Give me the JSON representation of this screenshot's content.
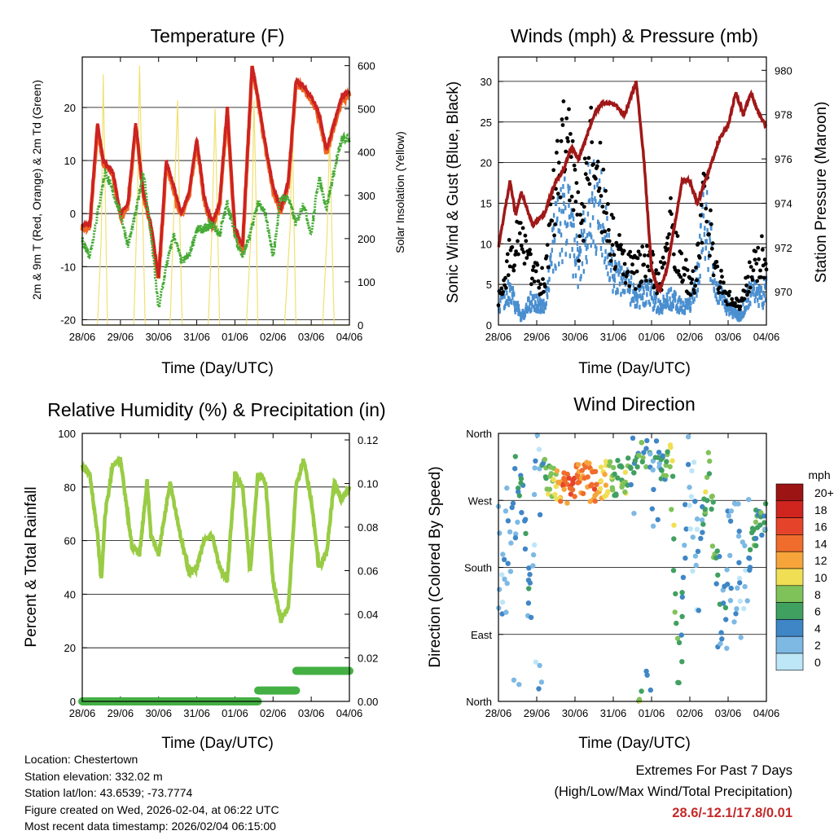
{
  "colors": {
    "temp2m": "#cc2222",
    "temp9m": "#ee6622",
    "dewpoint": "#44aa33",
    "solar": "#f0e070",
    "wind": "#4a8fd0",
    "gust": "#000000",
    "pressure": "#a01818",
    "rh": "#99cc44",
    "precip": "#44b044",
    "extremes": "#c42a2a"
  },
  "speed_scale": {
    "unit": "mph",
    "labels": [
      "20+",
      "18",
      "16",
      "14",
      "12",
      "10",
      "8",
      "6",
      "4",
      "2",
      "0"
    ],
    "colors": [
      "#9c1414",
      "#d0251f",
      "#e6442a",
      "#f06c2c",
      "#f7a53b",
      "#f0df55",
      "#80c25a",
      "#40a060",
      "#3f86c6",
      "#7eb9e4",
      "#bde6f7"
    ]
  },
  "chart_data": [
    {
      "id": "temperature",
      "type": "line",
      "title": "Temperature (F)",
      "xlabel": "Time (Day/UTC)",
      "ylabel": "2m & 9m T (Red, Orange) & 2m Td (Green)",
      "ylabel_right": "Solar Insolation (Yellow)",
      "x_ticks": [
        "28/06",
        "29/06",
        "30/06",
        "31/06",
        "01/06",
        "02/06",
        "03/06",
        "04/06"
      ],
      "ylim": [
        -21,
        29.5
      ],
      "y_ticks": [
        -20,
        -10,
        0,
        10,
        20
      ],
      "y2lim": [
        0,
        620
      ],
      "y2_ticks": [
        0,
        100,
        200,
        300,
        400,
        500,
        600
      ],
      "series": [
        {
          "name": "2m T",
          "x": [
            0,
            0.2,
            0.4,
            0.55,
            0.8,
            1.0,
            1.2,
            1.4,
            1.6,
            1.8,
            2.0,
            2.2,
            2.4,
            2.6,
            2.8,
            3.0,
            3.2,
            3.4,
            3.6,
            3.8,
            4.0,
            4.2,
            4.45,
            4.6,
            4.8,
            5.0,
            5.2,
            5.4,
            5.6,
            5.8,
            6.0,
            6.2,
            6.4,
            6.6,
            6.8,
            7.0
          ],
          "values": [
            -2,
            -2,
            17,
            10,
            8,
            0,
            2,
            17,
            4,
            -2,
            -12,
            10,
            5,
            0,
            4,
            14,
            3,
            -2,
            2,
            20,
            -3,
            -6,
            28,
            22,
            13,
            5,
            1,
            6,
            25,
            24,
            22,
            19,
            12,
            17,
            22,
            23
          ]
        },
        {
          "name": "Dewpoint",
          "x": [
            0,
            0.2,
            0.4,
            0.6,
            0.8,
            1.0,
            1.2,
            1.4,
            1.6,
            1.8,
            2.0,
            2.2,
            2.4,
            2.6,
            2.8,
            3.0,
            3.2,
            3.4,
            3.6,
            3.8,
            4.0,
            4.2,
            4.4,
            4.6,
            4.8,
            5.0,
            5.2,
            5.4,
            5.6,
            5.8,
            6.0,
            6.2,
            6.4,
            6.6,
            6.8,
            7.0
          ],
          "values": [
            -5,
            -8,
            0,
            8,
            4,
            0,
            -6,
            0,
            8,
            -4,
            -18,
            -10,
            -4,
            -9,
            -8,
            -3,
            -3,
            -2,
            -4,
            2,
            -4,
            -8,
            -4,
            2,
            0,
            -8,
            3,
            3,
            -2,
            2,
            -4,
            7,
            1,
            8,
            14,
            14
          ]
        },
        {
          "name": "Solar Insolation",
          "x": [
            0,
            0.4,
            0.5,
            0.55,
            0.62,
            0.66,
            1.0,
            1.35,
            1.45,
            1.5,
            1.57,
            1.65,
            2.0,
            2.3,
            2.4,
            2.5,
            2.55,
            2.62,
            3.0,
            3.3,
            3.4,
            3.48,
            3.55,
            3.6,
            4.0,
            4.3,
            4.45,
            4.5,
            4.56,
            4.6,
            5.0,
            5.3,
            5.45,
            5.5,
            5.55,
            5.6,
            6.0,
            6.3,
            6.42,
            6.48,
            6.54,
            6.6,
            7.0
          ],
          "values": [
            0,
            0,
            210,
            580,
            210,
            0,
            0,
            0,
            310,
            600,
            310,
            0,
            0,
            0,
            260,
            520,
            260,
            0,
            0,
            0,
            220,
            500,
            220,
            0,
            0,
            0,
            260,
            520,
            260,
            0,
            0,
            0,
            230,
            470,
            230,
            0,
            0,
            0,
            220,
            450,
            220,
            0,
            0
          ]
        }
      ]
    },
    {
      "id": "winds",
      "type": "scatter",
      "title": "Winds (mph) & Pressure (mb)",
      "xlabel": "Time (Day/UTC)",
      "ylabel": "Sonic Wind & Gust (Blue, Black)",
      "ylabel_right": "Station Pressure (Maroon)",
      "x_ticks": [
        "28/06",
        "29/06",
        "30/06",
        "31/06",
        "01/06",
        "02/06",
        "03/06",
        "04/06"
      ],
      "ylim": [
        0,
        33
      ],
      "y_ticks": [
        0,
        5,
        10,
        15,
        20,
        25,
        30
      ],
      "y2lim": [
        968.5,
        980.6
      ],
      "y2_ticks": [
        970,
        972,
        974,
        976,
        978,
        980
      ],
      "series": [
        {
          "name": "Sonic Wind",
          "x": [
            0,
            0.3,
            0.6,
            0.9,
            1.2,
            1.5,
            1.8,
            2.1,
            2.4,
            2.7,
            3.0,
            3.3,
            3.6,
            3.9,
            4.2,
            4.5,
            4.8,
            5.1,
            5.4,
            5.7,
            6.0,
            6.3,
            6.6,
            6.9,
            7.0
          ],
          "values": [
            2,
            4,
            1,
            3,
            2,
            10,
            12,
            6,
            14,
            12,
            6,
            5,
            3,
            4,
            2,
            3,
            2,
            3,
            12,
            4,
            2,
            1,
            4,
            3,
            5
          ]
        },
        {
          "name": "Gust",
          "x": [
            0,
            0.3,
            0.6,
            0.9,
            1.2,
            1.5,
            1.8,
            2.1,
            2.4,
            2.7,
            3.0,
            3.3,
            3.6,
            3.9,
            4.2,
            4.5,
            4.8,
            5.1,
            5.4,
            5.7,
            6.0,
            6.3,
            6.6,
            6.9,
            7.0
          ],
          "values": [
            4,
            10,
            15,
            8,
            6,
            21,
            28,
            14,
            26,
            20,
            12,
            9,
            8,
            10,
            6,
            15,
            8,
            6,
            19,
            8,
            4,
            3,
            8,
            11,
            9
          ]
        },
        {
          "name": "Pressure",
          "x": [
            0,
            0.3,
            0.45,
            0.6,
            0.9,
            1.2,
            1.5,
            1.7,
            1.9,
            2.1,
            2.3,
            2.5,
            2.7,
            3.0,
            3.3,
            3.6,
            3.8,
            4.0,
            4.2,
            4.4,
            4.6,
            4.8,
            5.0,
            5.2,
            5.4,
            5.6,
            5.8,
            6.0,
            6.2,
            6.4,
            6.6,
            6.8,
            7.0
          ],
          "values": [
            972,
            975,
            973.5,
            974.5,
            973,
            973.5,
            975,
            975.5,
            976.5,
            976,
            977,
            978,
            978.5,
            978.5,
            978,
            979.5,
            976,
            971,
            970,
            971,
            973,
            975,
            975,
            974,
            975,
            976,
            977,
            977.5,
            979,
            978,
            979,
            978,
            977.5
          ]
        }
      ]
    },
    {
      "id": "humidity",
      "type": "line",
      "title": "Relative Humidity (%) & Precipitation (in)",
      "xlabel": "Time (Day/UTC)",
      "ylabel": "Percent & Total Rainfall",
      "x_ticks": [
        "28/06",
        "29/06",
        "30/06",
        "31/06",
        "01/06",
        "02/06",
        "03/06",
        "04/06"
      ],
      "ylim": [
        0,
        100
      ],
      "y_ticks": [
        0,
        20,
        40,
        60,
        80,
        100
      ],
      "y2lim": [
        0,
        0.123
      ],
      "y2_ticks": [
        "0.00",
        "0.02",
        "0.04",
        "0.06",
        "0.08",
        "0.10",
        "0.12"
      ],
      "series": [
        {
          "name": "Relative Humidity",
          "x": [
            0,
            0.2,
            0.4,
            0.5,
            0.6,
            0.8,
            1.0,
            1.3,
            1.5,
            1.7,
            1.8,
            2.0,
            2.3,
            2.6,
            2.8,
            3.0,
            3.2,
            3.4,
            3.6,
            3.8,
            4.0,
            4.2,
            4.4,
            4.6,
            4.8,
            5.0,
            5.2,
            5.4,
            5.6,
            5.8,
            6.0,
            6.2,
            6.4,
            6.6,
            6.8,
            7.0
          ],
          "values": [
            88,
            85,
            62,
            45,
            70,
            88,
            90,
            58,
            55,
            82,
            62,
            55,
            82,
            60,
            48,
            50,
            60,
            62,
            50,
            45,
            85,
            80,
            48,
            85,
            82,
            45,
            30,
            35,
            80,
            90,
            75,
            50,
            55,
            82,
            75,
            80
          ]
        },
        {
          "name": "Total Precipitation",
          "x": [
            0,
            4.6,
            4.61,
            5.6,
            5.61,
            7.0
          ],
          "values": [
            0,
            0,
            0.005,
            0.005,
            0.014,
            0.014
          ]
        }
      ]
    },
    {
      "id": "wind_direction",
      "type": "scatter",
      "title": "Wind Direction",
      "xlabel": "Time (Day/UTC)",
      "ylabel": "Direction (Colored By Speed)",
      "x_ticks": [
        "28/06",
        "29/06",
        "30/06",
        "31/06",
        "01/06",
        "02/06",
        "03/06",
        "04/06"
      ],
      "y_ticks": [
        "North",
        "East",
        "South",
        "West",
        "North"
      ],
      "ylim": [
        0,
        360
      ],
      "series": [
        {
          "name": "Direction",
          "x": [
            0.2,
            0.4,
            0.6,
            0.8,
            1.0,
            1.3,
            1.6,
            1.9,
            2.2,
            2.5,
            2.8,
            3.1,
            3.3,
            3.5,
            3.7,
            4.0,
            4.3,
            4.5,
            4.7,
            5.0,
            5.2,
            5.5,
            5.8,
            6.1,
            6.4,
            6.6,
            6.8,
            7.0
          ],
          "values": [
            180,
            310,
            300,
            140,
            330,
            300,
            290,
            290,
            300,
            290,
            300,
            300,
            290,
            320,
            350,
            300,
            310,
            330,
            30,
            290,
            180,
            320,
            100,
            220,
            140,
            220,
            240,
            260
          ],
          "speeds": [
            2,
            3,
            5,
            4,
            1,
            8,
            12,
            16,
            12,
            14,
            10,
            6,
            9,
            4,
            8,
            3,
            5,
            9,
            6,
            2,
            1,
            9,
            4,
            3,
            2,
            5,
            6,
            4
          ]
        }
      ]
    }
  ],
  "info": {
    "location": "Location: Chestertown",
    "elevation": "Station elevation: 332.02 m",
    "latlon": "Station lat/lon: 43.6539; -73.7774",
    "created": "Figure created on Wed, 2026-02-04, at 06:22 UTC",
    "recent": "Most recent data timestamp: 2026/02/04 06:15:00"
  },
  "extremes": {
    "title": "Extremes For Past 7 Days",
    "subtitle": "(High/Low/Max Wind/Total Precipitation)",
    "values": "28.6/-12.1/17.8/0.01"
  }
}
